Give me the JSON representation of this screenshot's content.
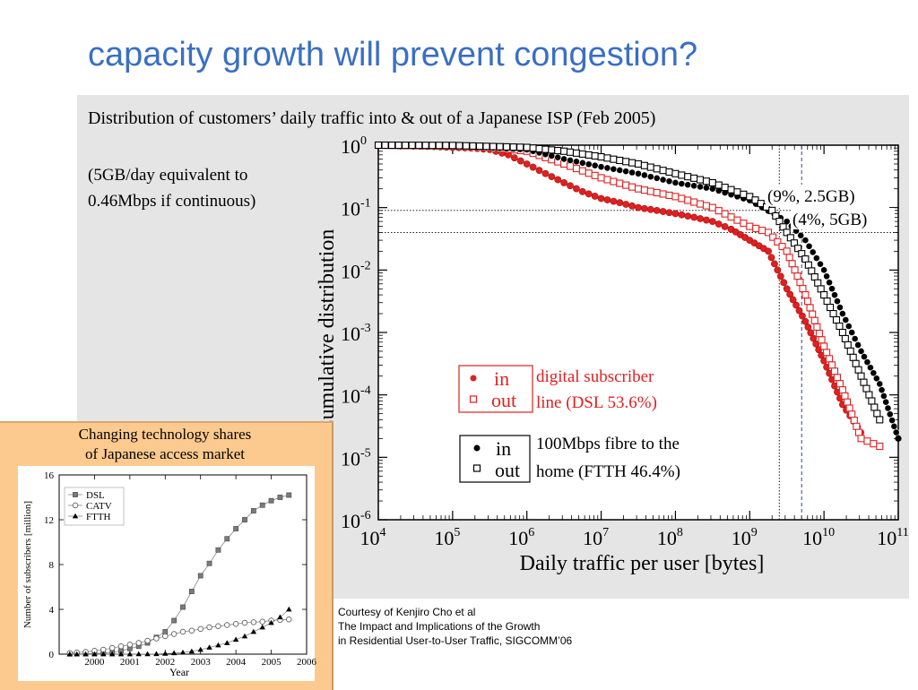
{
  "slide_title": "capacity growth will prevent congestion?",
  "main_chart": {
    "subtitle": "Distribution of customers’ daily traffic into & out of a Japanese ISP (Feb 2005)",
    "note_line1": "(5GB/day equivalent to",
    "note_line2": "0.46Mbps if continuous)",
    "annotation_9pct": "(9%, 2.5GB)",
    "annotation_4pct": "(4%, 5GB)",
    "legend_dsl_in": "in",
    "legend_dsl_out": "out",
    "legend_dsl_line1": "digital subscriber",
    "legend_dsl_line2": "line (DSL 53.6%)",
    "legend_ftth_in": "in",
    "legend_ftth_out": "out",
    "legend_ftth_line1": "100Mbps fibre to the",
    "legend_ftth_line2": "home (FTTH 46.4%)"
  },
  "inset": {
    "caption_line1": "Changing technology shares",
    "caption_line2": "of Japanese access market"
  },
  "credits": {
    "line1": "Courtesy of Kenjiro Cho et al",
    "line2": "The Impact and Implications of the Growth",
    "line3": "in Residential User-to-User Traffic, SIGCOMM’06"
  },
  "colors": {
    "title": "#3a6fc4",
    "dsl": "#e02020",
    "ftth": "#000000"
  },
  "chart_data": [
    {
      "type": "scatter",
      "xlabel": "Daily traffic per user [bytes]",
      "ylabel": "Cumulative distribution",
      "xscale": "log",
      "yscale": "log",
      "xlim": [
        10000,
        100000000000
      ],
      "ylim": [
        1e-06,
        1
      ],
      "x_ticks": [
        {
          "base": "10",
          "exp": "4"
        },
        {
          "base": "10",
          "exp": "5"
        },
        {
          "base": "10",
          "exp": "6"
        },
        {
          "base": "10",
          "exp": "7"
        },
        {
          "base": "10",
          "exp": "8"
        },
        {
          "base": "10",
          "exp": "9"
        },
        {
          "base": "10",
          "exp": "10"
        },
        {
          "base": "10",
          "exp": "11"
        }
      ],
      "y_ticks": [
        {
          "base": "10",
          "exp": "0"
        },
        {
          "base": "10",
          "exp": "-1"
        },
        {
          "base": "10",
          "exp": "-2"
        },
        {
          "base": "10",
          "exp": "-3"
        },
        {
          "base": "10",
          "exp": "-4"
        },
        {
          "base": "10",
          "exp": "-5"
        },
        {
          "base": "10",
          "exp": "-6"
        }
      ],
      "reference_lines": [
        {
          "kind": "horizontal",
          "y": 0.09,
          "style": "dotted"
        },
        {
          "kind": "horizontal",
          "y": 0.04,
          "style": "dotted"
        },
        {
          "kind": "vertical",
          "x": 2500000000,
          "style": "dotted"
        },
        {
          "kind": "vertical",
          "x": 5000000000,
          "style": "dashed"
        }
      ],
      "series": [
        {
          "name": "DSL in",
          "marker": "filled-circle",
          "color": "#e02020",
          "points": [
            [
              10000,
              1
            ],
            [
              56000,
              0.95
            ],
            [
              100000,
              0.92
            ],
            [
              178000,
              0.9
            ],
            [
              316000,
              0.85
            ],
            [
              562000,
              0.7
            ],
            [
              1000000,
              0.5
            ],
            [
              1780000,
              0.35
            ],
            [
              3160000,
              0.25
            ],
            [
              5620000,
              0.18
            ],
            [
              10000000,
              0.14
            ],
            [
              17800000,
              0.12
            ],
            [
              31600000,
              0.1
            ],
            [
              56200000,
              0.09
            ],
            [
              100000000,
              0.08
            ],
            [
              178000000,
              0.07
            ],
            [
              316000000,
              0.06
            ],
            [
              562000000,
              0.045
            ],
            [
              1000000000,
              0.03
            ],
            [
              1780000000,
              0.02
            ],
            [
              3160000000,
              0.005
            ],
            [
              5620000000,
              0.0015
            ],
            [
              10000000000,
              0.00035
            ],
            [
              17800000000,
              7e-05
            ],
            [
              31600000000,
              2.5e-05
            ]
          ]
        },
        {
          "name": "DSL out",
          "marker": "open-square",
          "color": "#e02020",
          "points": [
            [
              10000,
              1
            ],
            [
              100000,
              0.97
            ],
            [
              316000,
              0.93
            ],
            [
              1000000,
              0.8
            ],
            [
              3160000,
              0.5
            ],
            [
              10000000,
              0.3
            ],
            [
              31600000,
              0.2
            ],
            [
              100000000,
              0.15
            ],
            [
              316000000,
              0.1
            ],
            [
              1000000000,
              0.05
            ],
            [
              1780000000,
              0.04
            ],
            [
              3160000000,
              0.02
            ],
            [
              5620000000,
              0.004
            ],
            [
              10000000000,
              0.0006
            ],
            [
              17800000000,
              0.00012
            ],
            [
              31600000000,
              2e-05
            ],
            [
              56200000000,
              1.5e-05
            ]
          ]
        },
        {
          "name": "FTTH in",
          "marker": "filled-circle",
          "color": "#000000",
          "points": [
            [
              10000,
              1
            ],
            [
              100000,
              0.98
            ],
            [
              1000000,
              0.85
            ],
            [
              3160000,
              0.6
            ],
            [
              10000000,
              0.45
            ],
            [
              31600000,
              0.35
            ],
            [
              100000000,
              0.25
            ],
            [
              316000000,
              0.2
            ],
            [
              1000000000,
              0.13
            ],
            [
              3160000000,
              0.06
            ],
            [
              5620000000,
              0.03
            ],
            [
              10000000000,
              0.01
            ],
            [
              17800000000,
              0.002
            ],
            [
              31600000000,
              0.0005
            ],
            [
              56200000000,
              0.00015
            ],
            [
              100000000000,
              2e-05
            ]
          ]
        },
        {
          "name": "FTTH out",
          "marker": "open-square",
          "color": "#000000",
          "points": [
            [
              10000,
              1
            ],
            [
              100000,
              0.99
            ],
            [
              1000000,
              0.92
            ],
            [
              3160000,
              0.8
            ],
            [
              10000000,
              0.65
            ],
            [
              31600000,
              0.5
            ],
            [
              100000000,
              0.35
            ],
            [
              316000000,
              0.25
            ],
            [
              1000000000,
              0.15
            ],
            [
              2000000000,
              0.09
            ],
            [
              3160000000,
              0.04
            ],
            [
              5620000000,
              0.015
            ],
            [
              10000000000,
              0.004
            ],
            [
              17800000000,
              0.001
            ],
            [
              31600000000,
              0.0002
            ],
            [
              56200000000,
              4e-05
            ]
          ]
        }
      ]
    },
    {
      "type": "line",
      "xlabel": "Year",
      "ylabel": "Number of subscribers [million]",
      "xlim": [
        1999,
        2006
      ],
      "ylim": [
        0,
        16
      ],
      "x_tick_labels": [
        "2000",
        "2001",
        "2002",
        "2003",
        "2004",
        "2005",
        "2006"
      ],
      "y_tick_labels": [
        "0",
        "4",
        "8",
        "12",
        "16"
      ],
      "series": [
        {
          "name": "DSL",
          "marker": "filled-square",
          "points": [
            [
              1999.3,
              0.02
            ],
            [
              1999.5,
              0.03
            ],
            [
              1999.75,
              0.04
            ],
            [
              2000,
              0.06
            ],
            [
              2000.25,
              0.1
            ],
            [
              2000.5,
              0.15
            ],
            [
              2000.75,
              0.3
            ],
            [
              2001,
              0.5
            ],
            [
              2001.25,
              0.7
            ],
            [
              2001.5,
              1.0
            ],
            [
              2001.75,
              1.5
            ],
            [
              2002,
              2.0
            ],
            [
              2002.25,
              3.0
            ],
            [
              2002.5,
              4.2
            ],
            [
              2002.75,
              5.6
            ],
            [
              2003,
              7.0
            ],
            [
              2003.25,
              8.1
            ],
            [
              2003.5,
              9.3
            ],
            [
              2003.75,
              10.3
            ],
            [
              2004,
              11.2
            ],
            [
              2004.25,
              12.0
            ],
            [
              2004.5,
              12.8
            ],
            [
              2004.75,
              13.3
            ],
            [
              2005,
              13.7
            ],
            [
              2005.25,
              14.0
            ],
            [
              2005.5,
              14.2
            ]
          ]
        },
        {
          "name": "CATV",
          "marker": "open-circle",
          "points": [
            [
              1999.3,
              0.1
            ],
            [
              1999.5,
              0.15
            ],
            [
              1999.75,
              0.2
            ],
            [
              2000,
              0.3
            ],
            [
              2000.25,
              0.4
            ],
            [
              2000.5,
              0.55
            ],
            [
              2000.75,
              0.7
            ],
            [
              2001,
              0.85
            ],
            [
              2001.25,
              1.0
            ],
            [
              2001.5,
              1.2
            ],
            [
              2001.75,
              1.4
            ],
            [
              2002,
              1.6
            ],
            [
              2002.25,
              1.8
            ],
            [
              2002.5,
              2.0
            ],
            [
              2002.75,
              2.1
            ],
            [
              2003,
              2.25
            ],
            [
              2003.25,
              2.4
            ],
            [
              2003.5,
              2.5
            ],
            [
              2003.75,
              2.6
            ],
            [
              2004,
              2.7
            ],
            [
              2004.25,
              2.8
            ],
            [
              2004.5,
              2.85
            ],
            [
              2004.75,
              2.9
            ],
            [
              2005,
              3.0
            ],
            [
              2005.25,
              3.05
            ],
            [
              2005.5,
              3.1
            ]
          ]
        },
        {
          "name": "FTTH",
          "marker": "filled-triangle",
          "points": [
            [
              1999.3,
              0
            ],
            [
              1999.5,
              0
            ],
            [
              1999.75,
              0
            ],
            [
              2000,
              0
            ],
            [
              2000.25,
              0
            ],
            [
              2000.5,
              0
            ],
            [
              2000.75,
              0
            ],
            [
              2001,
              0
            ],
            [
              2001.25,
              0.01
            ],
            [
              2001.5,
              0.01
            ],
            [
              2001.75,
              0.02
            ],
            [
              2002,
              0.05
            ],
            [
              2002.25,
              0.1
            ],
            [
              2002.5,
              0.15
            ],
            [
              2002.75,
              0.25
            ],
            [
              2003,
              0.4
            ],
            [
              2003.25,
              0.6
            ],
            [
              2003.5,
              0.8
            ],
            [
              2003.75,
              1.0
            ],
            [
              2004,
              1.3
            ],
            [
              2004.25,
              1.6
            ],
            [
              2004.5,
              2.0
            ],
            [
              2004.75,
              2.4
            ],
            [
              2005,
              2.8
            ],
            [
              2005.25,
              3.3
            ],
            [
              2005.5,
              4.0
            ]
          ]
        }
      ]
    }
  ]
}
